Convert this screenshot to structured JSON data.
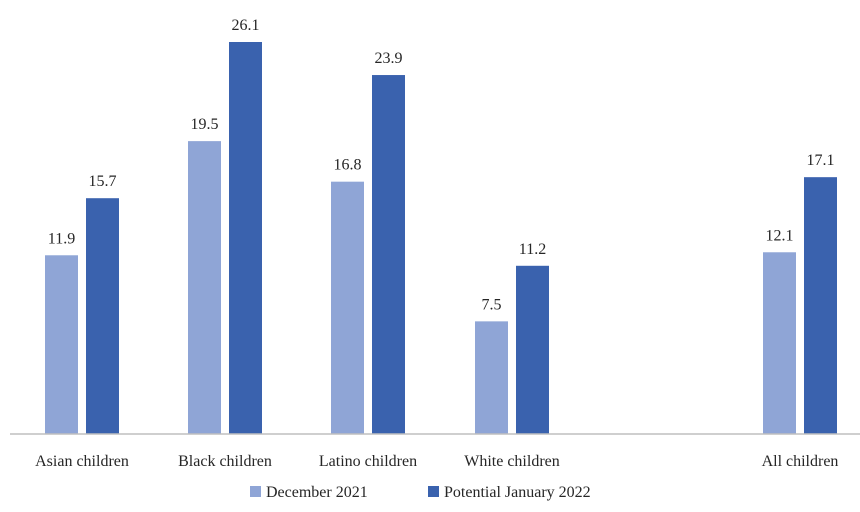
{
  "chart_data": {
    "type": "bar",
    "categories": [
      "Asian children",
      "Black children",
      "Latino children",
      "White children",
      "",
      "All children"
    ],
    "series": [
      {
        "name": "December 2021",
        "values": [
          11.9,
          19.5,
          16.8,
          7.5,
          null,
          12.1
        ],
        "color": "#8FA5D6"
      },
      {
        "name": "Potential January 2022",
        "values": [
          15.7,
          26.1,
          23.9,
          11.2,
          null,
          17.1
        ],
        "color": "#3A62AE"
      }
    ],
    "title": "",
    "xlabel": "",
    "ylabel": "",
    "ylim": [
      0,
      26.1
    ],
    "grid": false,
    "legend_position": "bottom",
    "axis_color": "#bfbfbf"
  }
}
